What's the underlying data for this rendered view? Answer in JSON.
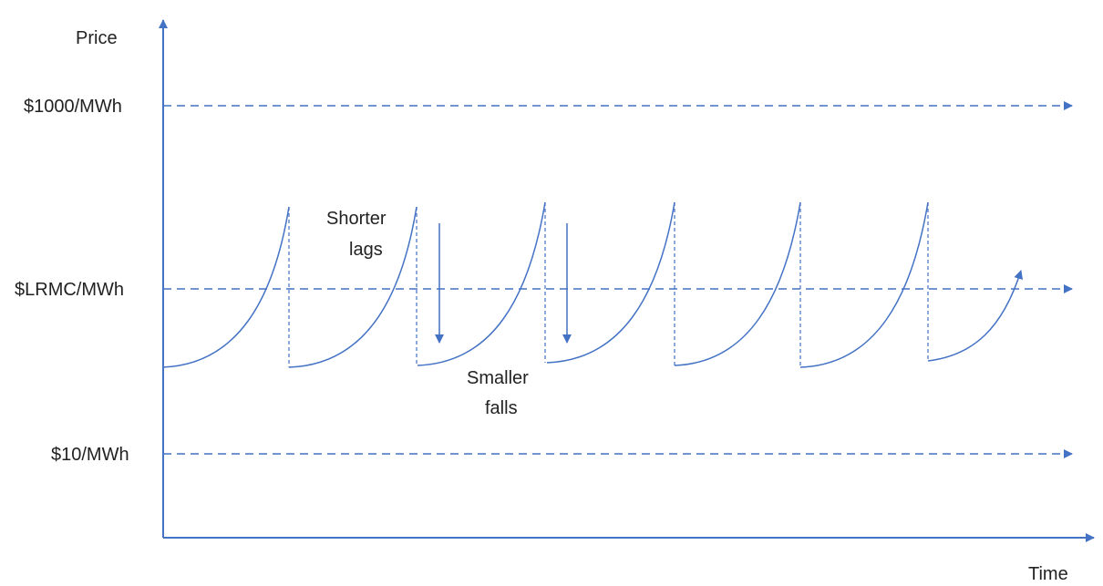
{
  "axes": {
    "y_label": "Price",
    "x_label": "Time"
  },
  "levels": [
    {
      "label": "$1000/MWh"
    },
    {
      "label": "$LRMC/MWh"
    },
    {
      "label": "$10/MWh"
    }
  ],
  "annotations": {
    "shorter_lags_line1": "Shorter",
    "shorter_lags_line2": "lags",
    "smaller_falls_line1": "Smaller",
    "smaller_falls_line2": "falls"
  },
  "colors": {
    "line": "#4472c4",
    "text": "#222222",
    "background": "#ffffff"
  }
}
